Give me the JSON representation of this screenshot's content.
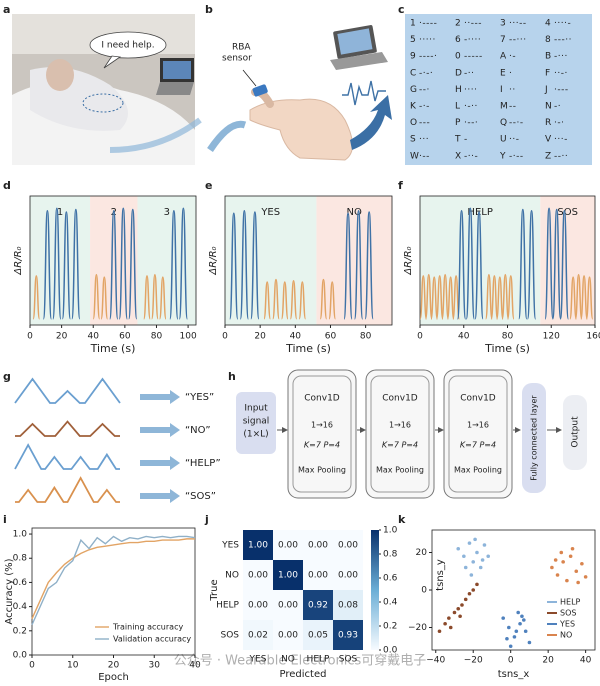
{
  "panel_labels": [
    "a",
    "b",
    "c",
    "d",
    "e",
    "f",
    "g",
    "h",
    "i",
    "j",
    "k"
  ],
  "photo": {
    "speech": "I need help."
  },
  "illustration": {
    "sensor_label": [
      "RBA",
      "sensor"
    ]
  },
  "morse_table": {
    "entries": [
      [
        "1",
        "·----"
      ],
      [
        "2",
        "··---"
      ],
      [
        "3",
        "···--"
      ],
      [
        "4",
        "····-"
      ],
      [
        "5",
        "·····"
      ],
      [
        "6",
        "-····"
      ],
      [
        "7",
        "--···"
      ],
      [
        "8",
        "---··"
      ],
      [
        "9",
        "----·"
      ],
      [
        "0",
        "-----"
      ],
      [
        "A",
        "·-"
      ],
      [
        "B",
        "-···"
      ],
      [
        "C",
        "-·-·"
      ],
      [
        "D",
        "-··"
      ],
      [
        "E",
        "·"
      ],
      [
        "F",
        "··-·"
      ],
      [
        "G",
        "--·"
      ],
      [
        "H",
        "····"
      ],
      [
        "I",
        "··"
      ],
      [
        "J",
        "·---"
      ],
      [
        "K",
        "-·-"
      ],
      [
        "L",
        "·-··"
      ],
      [
        "M",
        "--"
      ],
      [
        "N",
        "-·"
      ],
      [
        "O",
        "---"
      ],
      [
        "P",
        "·--·"
      ],
      [
        "Q",
        "--·-"
      ],
      [
        "R",
        "·-·"
      ],
      [
        "S",
        "···"
      ],
      [
        "T",
        "-"
      ],
      [
        "U",
        "··-"
      ],
      [
        "V",
        "···-"
      ],
      [
        "W",
        "·--"
      ],
      [
        "X",
        "-··-"
      ],
      [
        "Y",
        "-·--"
      ],
      [
        "Z",
        "--··"
      ]
    ]
  },
  "chart_data": [
    {
      "type": "signal",
      "x_label": "Time (s)",
      "y_label": "ΔR/R₀",
      "xlim": [
        0,
        105
      ],
      "xticks": [
        0,
        20,
        40,
        60,
        80,
        100
      ],
      "ylim": [
        -0.05,
        1
      ],
      "regions": [
        {
          "label": "1",
          "start": 0,
          "end": 38,
          "color": "#e7f4ee"
        },
        {
          "label": "2",
          "start": 38,
          "end": 68,
          "color": "#fbe7e1"
        },
        {
          "label": "3",
          "start": 68,
          "end": 105,
          "color": "#e7f4ee"
        }
      ],
      "series": [
        {
          "color": "#e2a465",
          "x": [
            4,
            42,
            47,
            74,
            79,
            84
          ],
          "values": [
            0.35,
            0.36,
            0.34,
            0.35,
            0.36,
            0.34
          ]
        },
        {
          "color": "#3f72a6",
          "x": [
            11,
            17,
            23,
            29,
            53,
            59,
            65,
            91,
            97
          ],
          "values": [
            0.88,
            0.9,
            0.87,
            0.89,
            0.88,
            0.9,
            0.89,
            0.88,
            0.9
          ]
        }
      ]
    },
    {
      "type": "signal",
      "x_label": "Time (s)",
      "y_label": "ΔR/R₀",
      "xlim": [
        0,
        95
      ],
      "xticks": [
        0,
        20,
        40,
        60,
        80
      ],
      "ylim": [
        -0.05,
        1
      ],
      "regions": [
        {
          "label": "YES",
          "start": 0,
          "end": 52,
          "color": "#e7f4ee"
        },
        {
          "label": "NO",
          "start": 52,
          "end": 95,
          "color": "#fbe7e1"
        }
      ],
      "series": [
        {
          "color": "#e2a465",
          "x": [
            24,
            29,
            34,
            39,
            44,
            56,
            61
          ],
          "values": [
            0.3,
            0.32,
            0.3,
            0.31,
            0.3,
            0.32,
            0.3
          ]
        },
        {
          "color": "#3f72a6",
          "x": [
            5,
            11,
            17,
            70,
            76,
            82
          ],
          "values": [
            0.86,
            0.88,
            0.87,
            0.86,
            0.88,
            0.87
          ]
        }
      ]
    },
    {
      "type": "signal",
      "x_label": "Time (s)",
      "y_label": "ΔR/R₀",
      "xlim": [
        0,
        160
      ],
      "xticks": [
        0,
        40,
        80,
        120,
        160
      ],
      "ylim": [
        -0.05,
        1
      ],
      "regions": [
        {
          "label": "HELP",
          "start": 0,
          "end": 110,
          "color": "#e7f4ee"
        },
        {
          "label": "SOS",
          "start": 110,
          "end": 160,
          "color": "#fbe7e1"
        }
      ],
      "series": [
        {
          "color": "#e2a465",
          "x": [
            3,
            8,
            13,
            18,
            23,
            28,
            33,
            63,
            68,
            73,
            78,
            83,
            140,
            145,
            150,
            155
          ],
          "values": [
            0.35,
            0.36,
            0.34,
            0.35,
            0.36,
            0.34,
            0.35,
            0.36,
            0.35,
            0.34,
            0.36,
            0.35,
            0.34,
            0.36,
            0.35,
            0.34
          ]
        },
        {
          "color": "#3f72a6",
          "x": [
            38,
            46,
            54,
            94,
            102,
            118,
            125,
            132
          ],
          "values": [
            0.88,
            0.9,
            0.87,
            0.89,
            0.88,
            0.9,
            0.89,
            0.88
          ]
        }
      ]
    },
    {
      "type": "line",
      "x_label": "Epoch",
      "y_label": "Accuracy (%)",
      "xlim": [
        0,
        40
      ],
      "xticks": [
        0,
        10,
        20,
        30,
        40
      ],
      "ylim": [
        0,
        1.05
      ],
      "yticks": [
        {
          "value": 0,
          "label": "0.0"
        },
        {
          "value": 0.2,
          "label": "0.2"
        },
        {
          "value": 0.4,
          "label": "0.4"
        },
        {
          "value": 0.6,
          "label": "0.6"
        },
        {
          "value": 0.8,
          "label": "0.8"
        },
        {
          "value": 1,
          "label": "1.0"
        }
      ],
      "legend": "lower right",
      "series": [
        {
          "name": "Training accuracy",
          "color": "#e2a465",
          "x": [
            0,
            2,
            4,
            6,
            8,
            10,
            12,
            14,
            16,
            18,
            20,
            22,
            24,
            26,
            28,
            30,
            32,
            34,
            36,
            38,
            40
          ],
          "values": [
            0.3,
            0.45,
            0.6,
            0.68,
            0.75,
            0.8,
            0.84,
            0.87,
            0.89,
            0.9,
            0.91,
            0.92,
            0.93,
            0.93,
            0.94,
            0.94,
            0.95,
            0.95,
            0.95,
            0.96,
            0.96
          ]
        },
        {
          "name": "Validation accuracy",
          "color": "#8fb0c8",
          "x": [
            0,
            2,
            4,
            6,
            8,
            10,
            12,
            14,
            16,
            18,
            20,
            22,
            24,
            26,
            28,
            30,
            32,
            34,
            36,
            38,
            40
          ],
          "values": [
            0.25,
            0.4,
            0.55,
            0.6,
            0.72,
            0.78,
            0.95,
            0.88,
            0.97,
            0.92,
            0.98,
            0.94,
            0.97,
            0.96,
            0.98,
            0.97,
            0.98,
            0.97,
            0.98,
            0.98,
            0.97
          ]
        }
      ]
    },
    {
      "type": "heatmap",
      "x_label": "Predicted",
      "y_label": "True",
      "categories": [
        "YES",
        "NO",
        "HELP",
        "SOS"
      ],
      "values": [
        [
          1,
          0,
          0,
          0
        ],
        [
          0,
          1,
          0,
          0
        ],
        [
          0,
          0,
          0.92,
          0.08
        ],
        [
          0.02,
          0,
          0.05,
          0.93
        ]
      ],
      "value_labels": [
        [
          "1.00",
          "0.00",
          "0.00",
          "0.00"
        ],
        [
          "0.00",
          "1.00",
          "0.00",
          "0.00"
        ],
        [
          "0.00",
          "0.00",
          "0.92",
          "0.08"
        ],
        [
          "0.02",
          "0.00",
          "0.05",
          "0.93"
        ]
      ],
      "clim": [
        0,
        1
      ],
      "cticks": [
        {
          "value": 0,
          "label": "0.0"
        },
        {
          "value": 0.2,
          "label": "0.2"
        },
        {
          "value": 0.4,
          "label": "0.4"
        },
        {
          "value": 0.6,
          "label": "0.6"
        },
        {
          "value": 0.8,
          "label": "0.8"
        },
        {
          "value": 1,
          "label": "1.0"
        }
      ],
      "colormap": [
        "#f7fbff",
        "#6baed6",
        "#08306b"
      ]
    },
    {
      "type": "scatter",
      "x_label": "tsns_x",
      "y_label": "tsns_y",
      "xlim": [
        -42,
        45
      ],
      "ylim": [
        -32,
        32
      ],
      "xticks": [
        {
          "value": -40,
          "label": "−40"
        },
        {
          "value": -20,
          "label": "−20"
        },
        0,
        20,
        40
      ],
      "yticks": [
        {
          "value": -20,
          "label": "−20"
        },
        0,
        20
      ],
      "legend": "right",
      "series": [
        {
          "name": "HELP",
          "color": "#8db4da",
          "x": [
            -28,
            -25,
            -22,
            -20,
            -18,
            -16,
            -14,
            -12,
            -24,
            -19,
            -15,
            -21
          ],
          "values": [
            22,
            18,
            25,
            15,
            20,
            12,
            24,
            18,
            12,
            27,
            16,
            8
          ]
        },
        {
          "name": "SOS",
          "color": "#8b4a2b",
          "x": [
            -38,
            -35,
            -33,
            -30,
            -28,
            -26,
            -24,
            -22,
            -20,
            -18,
            -32,
            -27
          ],
          "values": [
            -22,
            -18,
            -15,
            -12,
            -10,
            -8,
            -5,
            -2,
            0,
            3,
            -20,
            -14
          ]
        },
        {
          "name": "YES",
          "color": "#4f81bd",
          "x": [
            -4,
            -1,
            2,
            5,
            8,
            10,
            0,
            4,
            7,
            -2,
            3,
            6
          ],
          "values": [
            -15,
            -20,
            -25,
            -18,
            -22,
            -28,
            -30,
            -12,
            -16,
            -26,
            -22,
            -14
          ]
        },
        {
          "name": "NO",
          "color": "#d9844e",
          "x": [
            22,
            25,
            28,
            30,
            32,
            35,
            38,
            40,
            27,
            33,
            36,
            24
          ],
          "values": [
            12,
            8,
            15,
            5,
            18,
            10,
            14,
            7,
            20,
            22,
            4,
            16
          ]
        }
      ]
    }
  ],
  "gestures": {
    "labels": [
      "“YES”",
      "“NO”",
      "“HELP”",
      "“SOS”"
    ],
    "colors": [
      "#6a9fd0",
      "#a0603a",
      "#6a9fd0",
      "#d9914e"
    ]
  },
  "network": {
    "input": [
      "Input",
      "signal",
      "(1×L)"
    ],
    "blocks": [
      {
        "title": "Conv1D",
        "channels": "1→16",
        "kernel": "K=7 P=4",
        "pool": "Max Pooling"
      },
      {
        "title": "Conv1D",
        "channels": "1→16",
        "kernel": "K=7 P=4",
        "pool": "Max Pooling"
      },
      {
        "title": "Conv1D",
        "channels": "1→16",
        "kernel": "K=7 P=4",
        "pool": "Max Pooling"
      }
    ],
    "fc": "Fully connected layer",
    "output": "Output"
  },
  "watermark": "公众号 · Wearable Electronics可穿戴电子"
}
